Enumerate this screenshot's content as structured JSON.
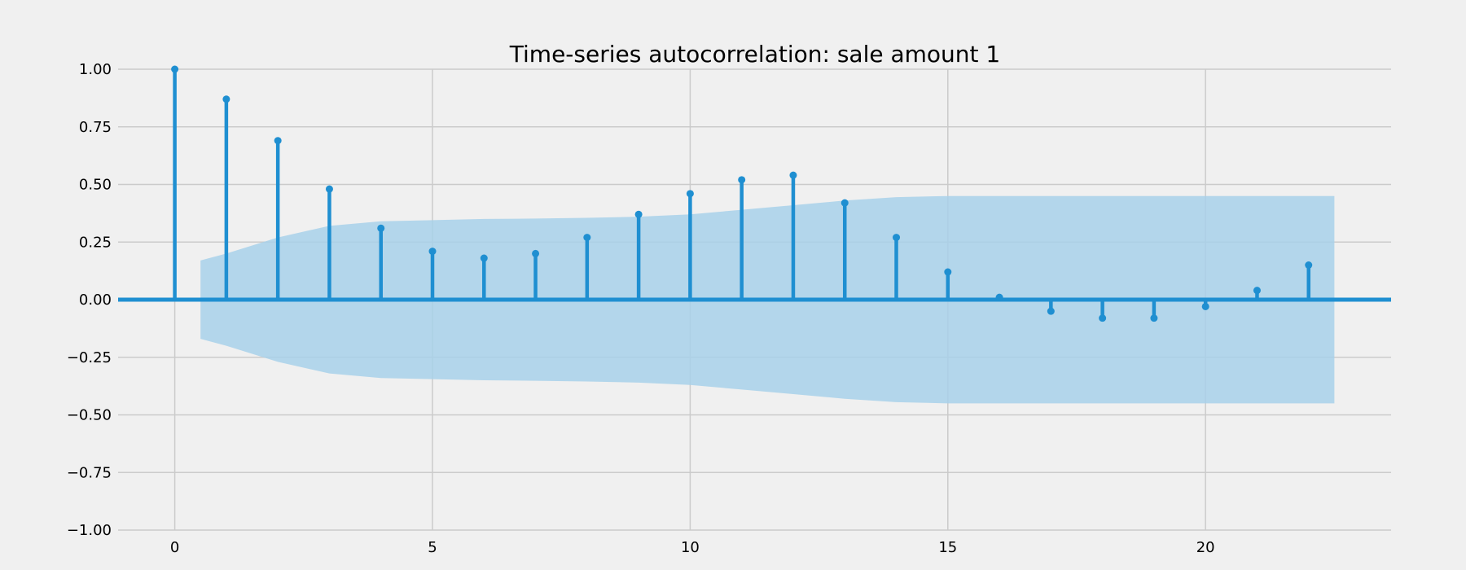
{
  "chart_data": {
    "type": "stem",
    "title": "Time-series autocorrelation: sale amount 1",
    "xlabel": "",
    "ylabel": "",
    "xlim": [
      -1.1,
      23.6
    ],
    "ylim": [
      -1.0,
      1.0
    ],
    "x_ticks": [
      "0",
      "5",
      "10",
      "15",
      "20"
    ],
    "x_tick_values": [
      0,
      5,
      10,
      15,
      20
    ],
    "y_ticks": [
      "−1.00",
      "−0.75",
      "−0.50",
      "−0.25",
      "0.00",
      "0.25",
      "0.50",
      "0.75",
      "1.00"
    ],
    "y_tick_values": [
      -1.0,
      -0.75,
      -0.5,
      -0.25,
      0.0,
      0.25,
      0.5,
      0.75,
      1.0
    ],
    "grid": true,
    "lags": [
      0,
      1,
      2,
      3,
      4,
      5,
      6,
      7,
      8,
      9,
      10,
      11,
      12,
      13,
      14,
      15,
      16,
      17,
      18,
      19,
      20,
      21,
      22
    ],
    "values": [
      1.0,
      0.87,
      0.69,
      0.48,
      0.31,
      0.21,
      0.18,
      0.2,
      0.27,
      0.37,
      0.46,
      0.52,
      0.54,
      0.42,
      0.27,
      0.12,
      0.01,
      -0.05,
      -0.08,
      -0.08,
      -0.03,
      0.04,
      0.15
    ],
    "confidence_interval": {
      "x": [
        0.5,
        1,
        2,
        3,
        4,
        5,
        6,
        7,
        8,
        9,
        10,
        11,
        12,
        13,
        14,
        15,
        16,
        17,
        18,
        19,
        20,
        21,
        22,
        22.5
      ],
      "upper": [
        0.17,
        0.2,
        0.27,
        0.32,
        0.34,
        0.345,
        0.35,
        0.352,
        0.355,
        0.36,
        0.37,
        0.39,
        0.41,
        0.43,
        0.445,
        0.45,
        0.45,
        0.45,
        0.45,
        0.45,
        0.45,
        0.45,
        0.45,
        0.45
      ]
    },
    "colors": {
      "stem": "#1f8fd1",
      "marker": "#1f8fd1",
      "baseline": "#1f8fd1",
      "band": "#a8d1ea",
      "grid": "#cbcbcb",
      "background": "#f0f0f0"
    }
  }
}
